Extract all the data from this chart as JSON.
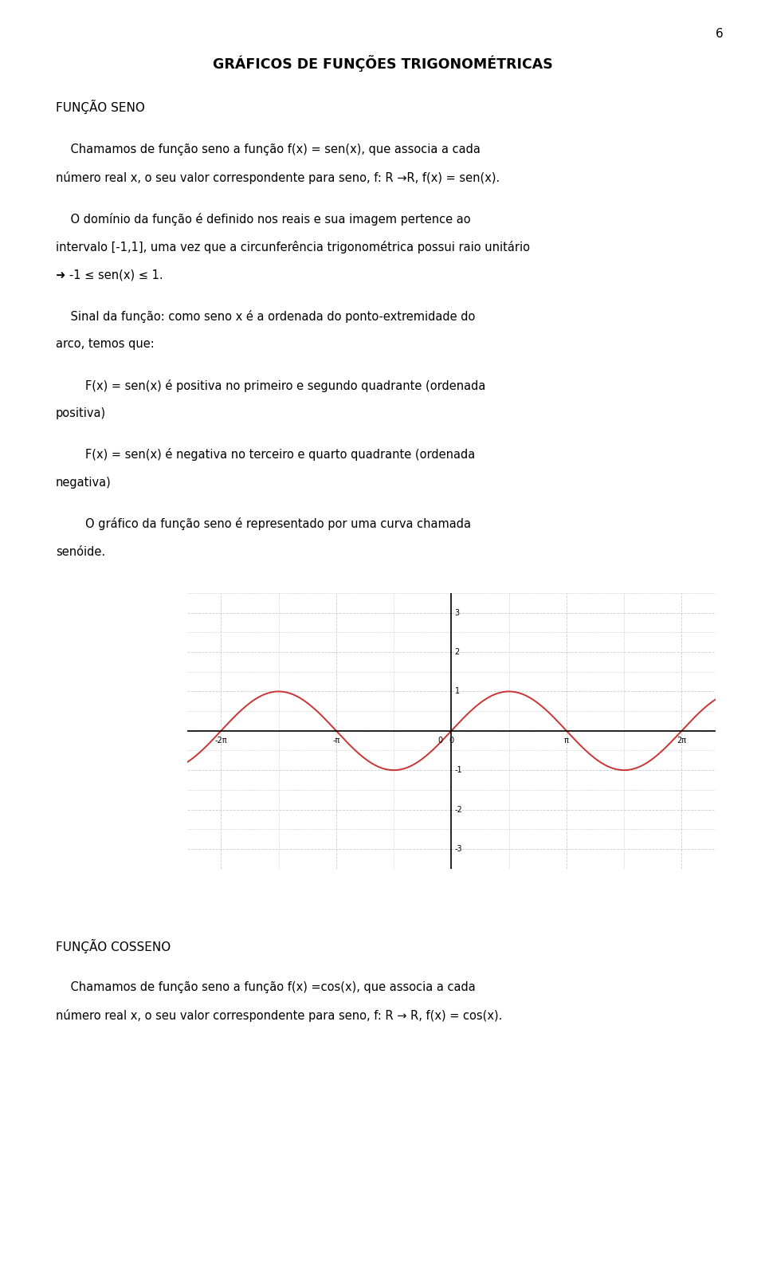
{
  "page_number": "6",
  "title": "GRÁFICOS DE FUNÇÕES TRIGONOMÉTRICAS",
  "section1_heading": "FUNÇÃO SENO",
  "section2_heading": "FUNÇÃO COSSENO",
  "para1_lines": [
    "    Chamamos de função seno a função f(x) = sen(x), que associa a cada",
    "número real x, o seu valor correspondente para seno, f: R →R, f(x) = sen(x)."
  ],
  "para2_lines": [
    "    O domínio da função é definido nos reais e sua imagem pertence ao",
    "intervalo [-1,1], uma vez que a circunferência trigonométrica possui raio unitário",
    "➜ -1 ≤ sen(x) ≤ 1."
  ],
  "para3_lines": [
    "    Sinal da função: como seno x é a ordenada do ponto-extremidade do",
    "arco, temos que:"
  ],
  "para4_lines": [
    "        F(x) = sen(x) é positiva no primeiro e segundo quadrante (ordenada",
    "positiva)"
  ],
  "para5_lines": [
    "        F(x) = sen(x) é negativa no terceiro e quarto quadrante (ordenada",
    "negativa)"
  ],
  "para6_lines": [
    "        O gráfico da função seno é representado por uma curva chamada",
    "senóide."
  ],
  "para7_lines": [
    "    Chamamos de função seno a função f(x) =cos(x), que associa a cada",
    "número real x, o seu valor correspondente para seno, f: R → R, f(x) = cos(x)."
  ],
  "graph_xlim": [
    -7.2,
    7.2
  ],
  "graph_ylim": [
    -3.5,
    3.5
  ],
  "graph_yticks": [
    -3,
    -2,
    -1,
    0,
    1,
    2,
    3
  ],
  "graph_xtick_labels": [
    "-2π",
    "-π",
    "0",
    "π",
    "2π"
  ],
  "graph_xtick_vals": [
    -6.283185307,
    -3.141592654,
    0,
    3.141592654,
    6.283185307
  ],
  "curve_color": "#cc3333",
  "grid_color": "#cccccc",
  "axis_color": "#000000",
  "bg_color": "#ffffff",
  "text_color": "#000000",
  "font_size_title": 12.5,
  "font_size_heading": 11,
  "font_size_body": 10.5,
  "font_size_page": 11,
  "font_size_tick": 7
}
